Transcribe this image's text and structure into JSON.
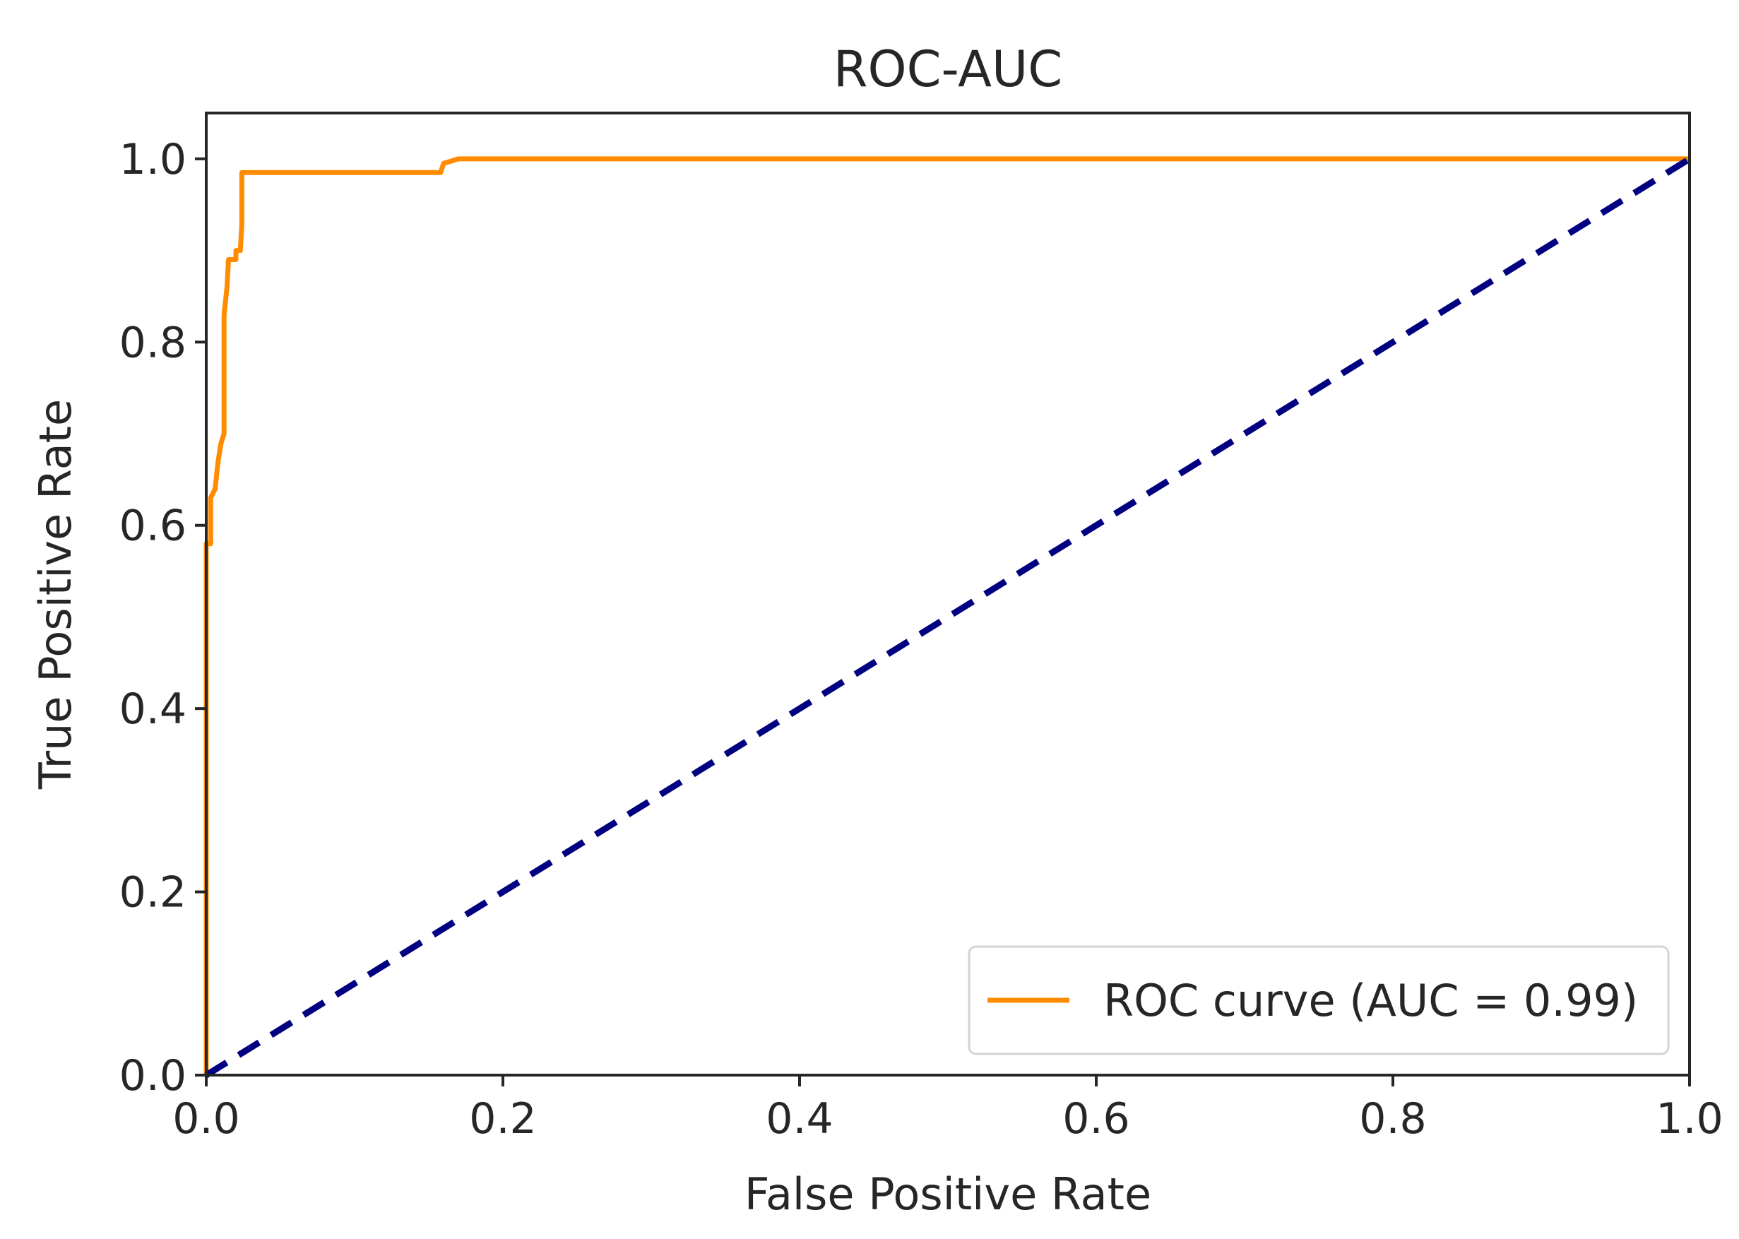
{
  "chart_data": {
    "type": "line",
    "title": "ROC-AUC",
    "xlabel": "False Positive Rate",
    "ylabel": "True Positive Rate",
    "xlim": [
      0.0,
      1.0
    ],
    "ylim": [
      0.0,
      1.05
    ],
    "xticks": [
      0.0,
      0.2,
      0.4,
      0.6,
      0.8,
      1.0
    ],
    "xtick_labels": [
      "0.0",
      "0.2",
      "0.4",
      "0.6",
      "0.8",
      "1.0"
    ],
    "yticks": [
      0.0,
      0.2,
      0.4,
      0.6,
      0.8,
      1.0
    ],
    "ytick_labels": [
      "0.0",
      "0.2",
      "0.4",
      "0.6",
      "0.8",
      "1.0"
    ],
    "grid": false,
    "legend_position": "lower right",
    "series": [
      {
        "name": "ROC curve (AUC = 0.99)",
        "color": "#ff8c00",
        "style": "solid",
        "x": [
          0.0,
          0.0,
          0.003,
          0.003,
          0.006,
          0.008,
          0.01,
          0.012,
          0.012,
          0.014,
          0.015,
          0.02,
          0.02,
          0.023,
          0.024,
          0.024,
          0.1,
          0.158,
          0.16,
          0.17,
          0.185,
          1.0
        ],
        "y": [
          0.0,
          0.58,
          0.58,
          0.63,
          0.64,
          0.67,
          0.69,
          0.7,
          0.83,
          0.86,
          0.89,
          0.89,
          0.9,
          0.9,
          0.93,
          0.985,
          0.985,
          0.985,
          0.995,
          1.0,
          1.0,
          1.0
        ]
      },
      {
        "name": "",
        "color": "#000080",
        "style": "dashed",
        "x": [
          0.0,
          1.0
        ],
        "y": [
          0.0,
          1.0
        ]
      }
    ]
  }
}
